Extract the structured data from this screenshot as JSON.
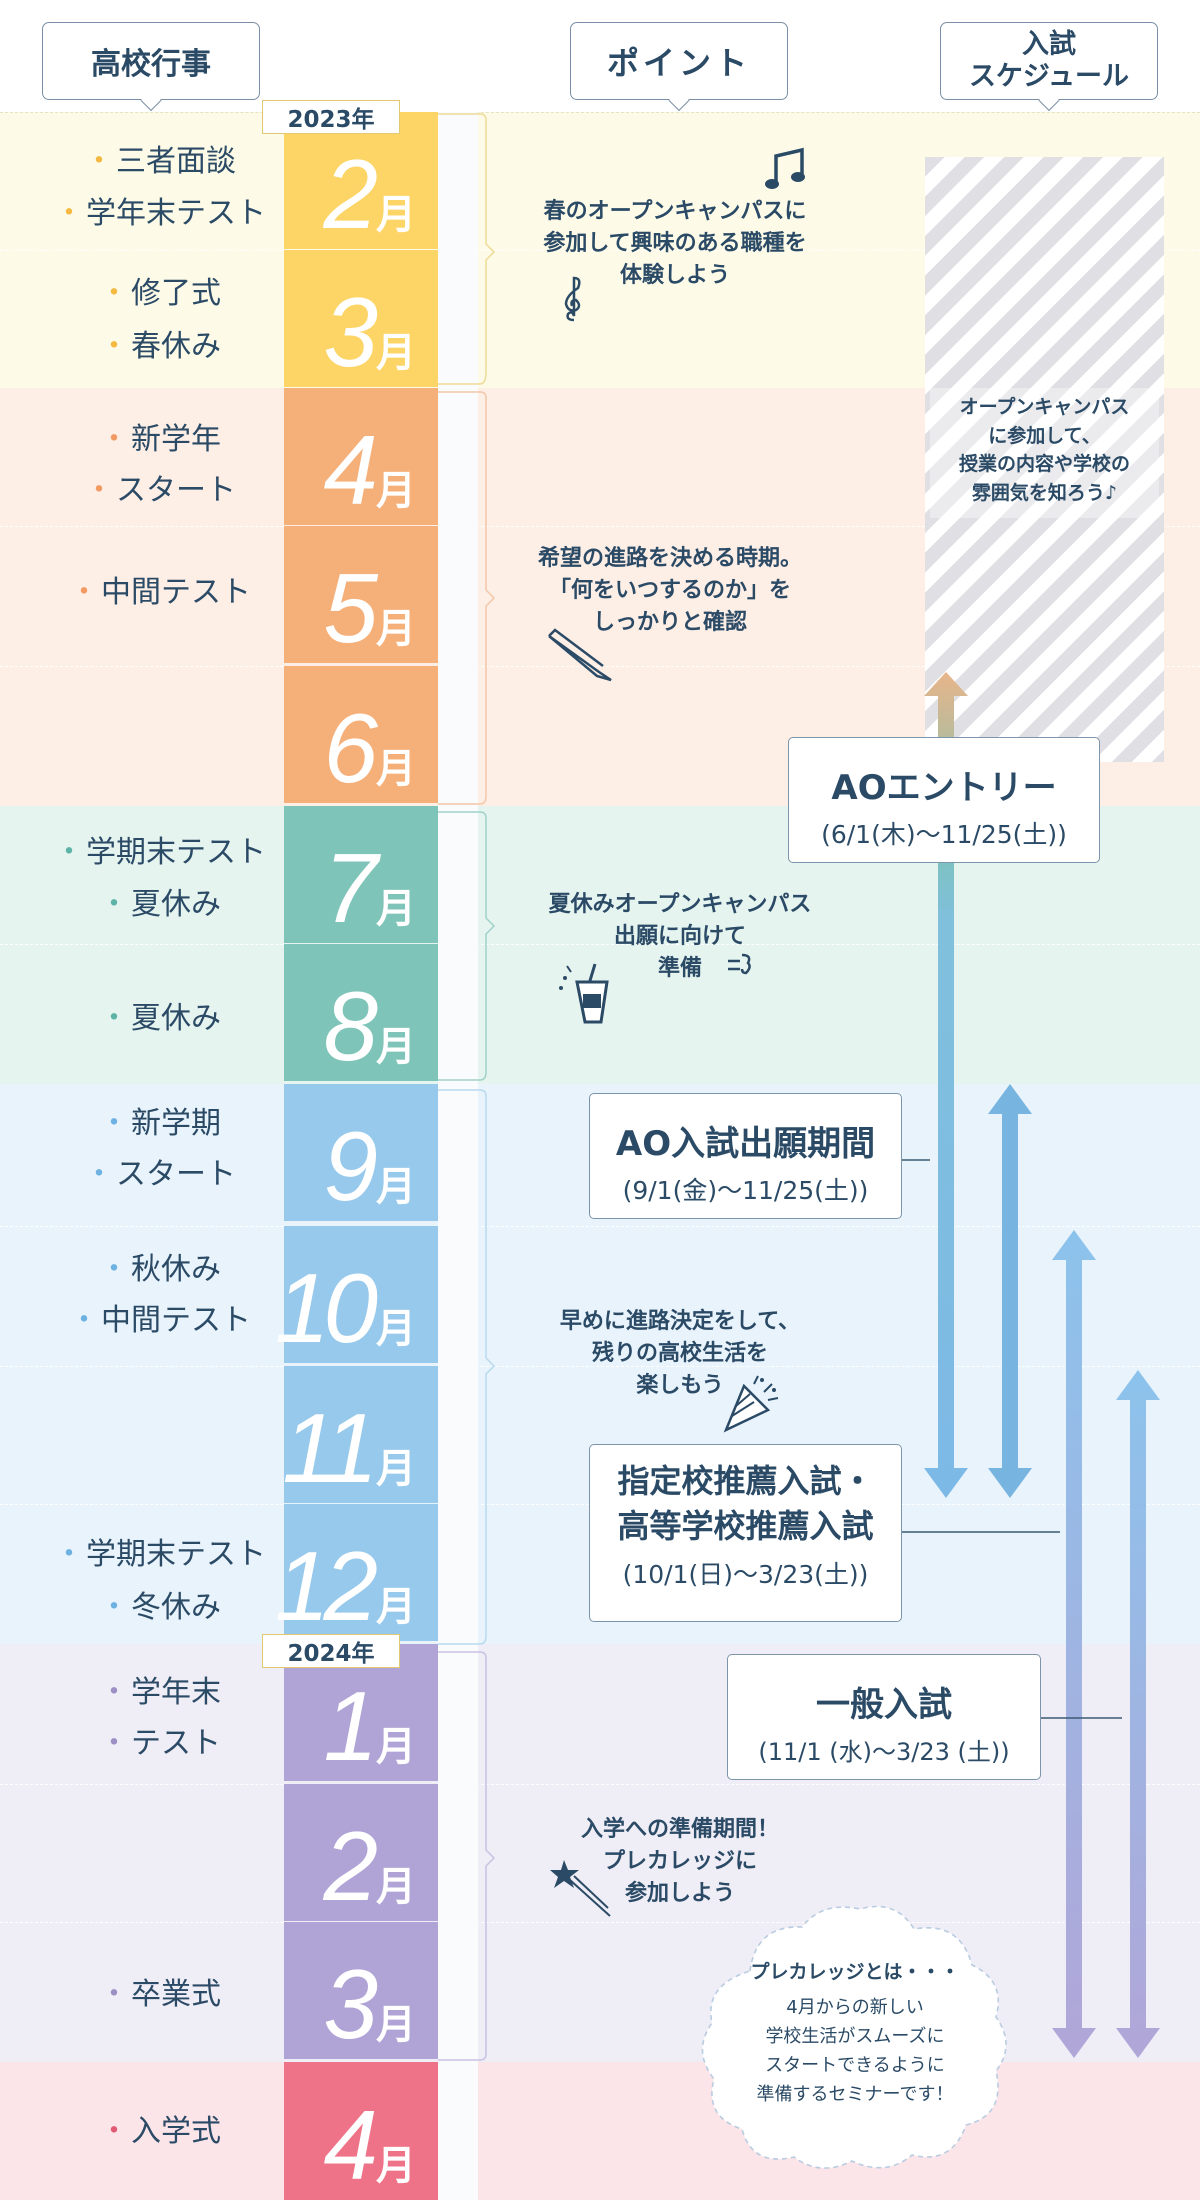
{
  "headers": {
    "events": "高校行事",
    "points": "ポイント",
    "schedule": "入試\nスケジュール"
  },
  "years": [
    "2023年",
    "2024年"
  ],
  "months": [
    {
      "num": "2",
      "suffix": "月",
      "color": "#fcd566"
    },
    {
      "num": "3",
      "suffix": "月",
      "color": "#fcd566"
    },
    {
      "num": "4",
      "suffix": "月",
      "color": "#f5b07a"
    },
    {
      "num": "5",
      "suffix": "月",
      "color": "#f5b07a"
    },
    {
      "num": "6",
      "suffix": "月",
      "color": "#f5b07a"
    },
    {
      "num": "7",
      "suffix": "月",
      "color": "#7ec4b8"
    },
    {
      "num": "8",
      "suffix": "月",
      "color": "#7ec4b8"
    },
    {
      "num": "9",
      "suffix": "月",
      "color": "#96c9ec"
    },
    {
      "num": "10",
      "suffix": "月",
      "color": "#96c9ec"
    },
    {
      "num": "11",
      "suffix": "月",
      "color": "#96c9ec"
    },
    {
      "num": "12",
      "suffix": "月",
      "color": "#96c9ec"
    },
    {
      "num": "1",
      "suffix": "月",
      "color": "#b0a4d6"
    },
    {
      "num": "2",
      "suffix": "月",
      "color": "#b0a4d6"
    },
    {
      "num": "3",
      "suffix": "月",
      "color": "#b0a4d6"
    },
    {
      "num": "4",
      "suffix": "月",
      "color": "#ef7388"
    }
  ],
  "events": [
    {
      "text": "三者面談",
      "dot": "#f5b941"
    },
    {
      "text": "学年末テスト",
      "dot": "#f5b941"
    },
    {
      "text": "修了式",
      "dot": "#f5b941"
    },
    {
      "text": "春休み",
      "dot": "#f5b941"
    },
    {
      "text": "新学年",
      "dot": "#f29a62"
    },
    {
      "text": "スタート",
      "dot": "#f29a62"
    },
    {
      "text": "中間テスト",
      "dot": "#f29a62"
    },
    {
      "text": "学期末テスト",
      "dot": "#5db3a5"
    },
    {
      "text": "夏休み",
      "dot": "#5db3a5"
    },
    {
      "text": "夏休み",
      "dot": "#5db3a5"
    },
    {
      "text": "新学期",
      "dot": "#6cb1e2"
    },
    {
      "text": "スタート",
      "dot": "#6cb1e2"
    },
    {
      "text": "秋休み",
      "dot": "#6cb1e2"
    },
    {
      "text": "中間テスト",
      "dot": "#6cb1e2"
    },
    {
      "text": "学期末テスト",
      "dot": "#6cb1e2"
    },
    {
      "text": "冬休み",
      "dot": "#6cb1e2"
    },
    {
      "text": "学年末",
      "dot": "#9b8fc6"
    },
    {
      "text": "テスト",
      "dot": "#9b8fc6"
    },
    {
      "text": "卒業式",
      "dot": "#9b8fc6"
    },
    {
      "text": "入学式",
      "dot": "#e05a73"
    }
  ],
  "points": [
    "春のオープンキャンパスに\n参加して興味のある職種を\n体験しよう",
    "希望の進路を決める時期。\n「何をいつするのか」を\nしっかりと確認",
    "夏休みオープンキャンパス\n出願に向けて\n準備",
    "早めに進路決定をして、\n残りの高校生活を\n楽しもう",
    "入学への準備期間！\nプレカレッジに\n参加しよう"
  ],
  "open_campus_note": "オープンキャンパス\nに参加して、\n授業の内容や学校の\n雰囲気を知ろう♪",
  "schedules": [
    {
      "title": "AOエントリー",
      "dates": "(6/1(木)〜11/25(土))"
    },
    {
      "title": "AO入試出願期間",
      "dates": "(9/1(金)〜11/25(土))"
    },
    {
      "title": "指定校推薦入試・\n高等学校推薦入試",
      "dates": "(10/1(日)〜3/23(土))"
    },
    {
      "title": "一般入試",
      "dates": "(11/1 (水)〜3/23 (土))"
    }
  ],
  "precollege": {
    "title": "プレカレッジとは・・・",
    "body": "4月からの新しい\n学校生活がスムーズに\nスタートできるように\n準備するセミナーです！"
  },
  "section_colors": [
    "#fdfbe8",
    "#fdeee6",
    "#e6f4f0",
    "#e8f3fb",
    "#efedf6",
    "#fbe5e9"
  ],
  "icons": [
    "music-note-icon",
    "treble-clef-icon",
    "pencil-icon",
    "drink-cup-icon",
    "party-popper-icon",
    "shooting-star-icon"
  ]
}
